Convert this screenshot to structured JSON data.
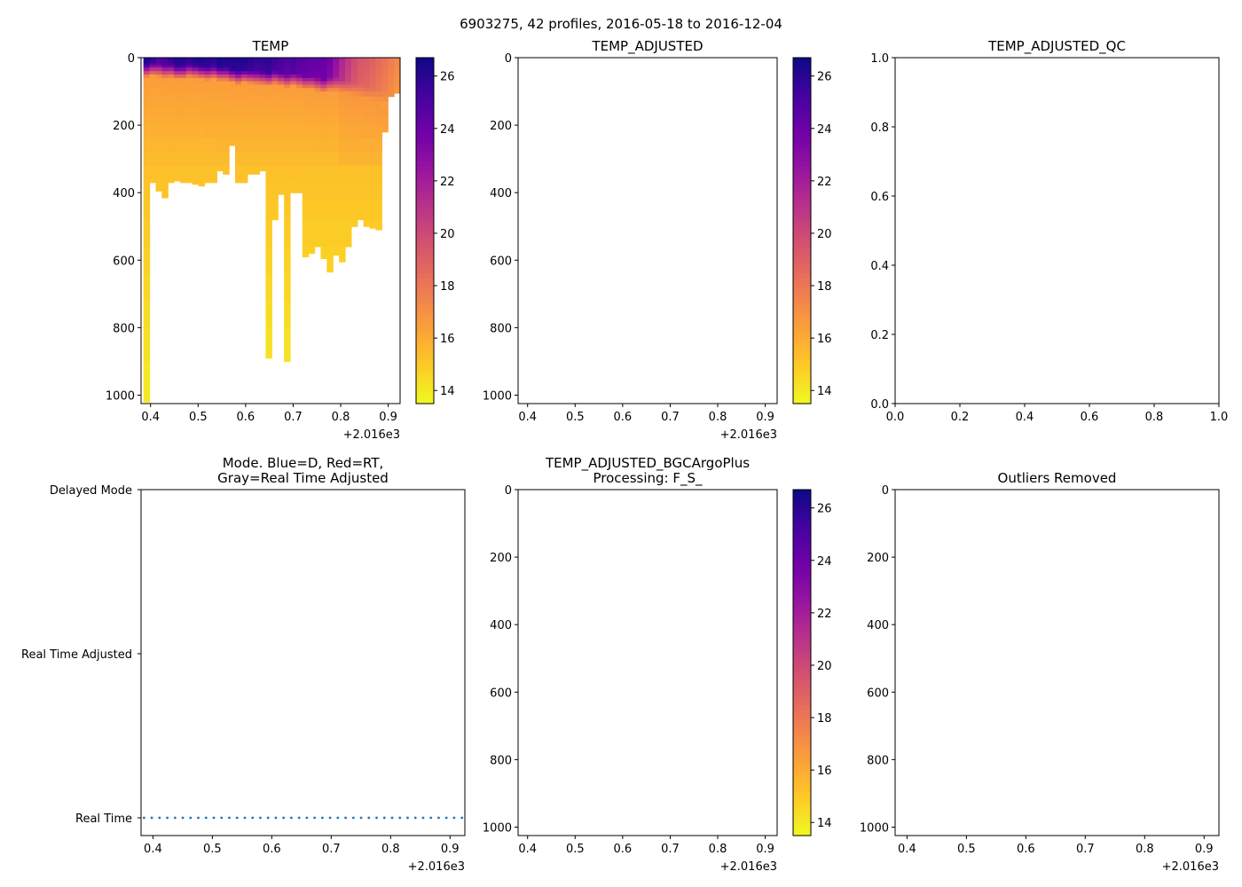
{
  "figure_title": "6903275, 42 profiles, 2016-05-18 to 2016-12-04",
  "colors": {
    "plasma": [
      "#0d0887",
      "#46039f",
      "#7201a8",
      "#9c179e",
      "#bd3786",
      "#d8576b",
      "#ed7953",
      "#fb9f3a",
      "#fdca26",
      "#f0f921"
    ],
    "mode_dots": "#1f77b4"
  },
  "chart_data": [
    {
      "id": "temp",
      "type": "heatmap",
      "title": "TEMP",
      "xlim": [
        0.38,
        0.925
      ],
      "xticks": [
        "0.4",
        "0.5",
        "0.6",
        "0.7",
        "0.8",
        "0.9"
      ],
      "x_offset_label": "+2.016e3",
      "ylim": [
        1025,
        0
      ],
      "yticks": [
        "0",
        "200",
        "400",
        "600",
        "800",
        "1000"
      ],
      "colorbar": {
        "range": [
          13.5,
          26.7
        ],
        "ticks": [
          "14",
          "16",
          "18",
          "20",
          "22",
          "24",
          "26"
        ]
      },
      "profile_depths": [
        1020,
        370,
        395,
        415,
        370,
        365,
        370,
        370,
        375,
        380,
        370,
        370,
        335,
        345,
        260,
        370,
        370,
        345,
        345,
        335,
        890,
        480,
        405,
        900,
        400,
        400,
        590,
        580,
        560,
        595,
        635,
        585,
        605,
        560,
        500,
        480,
        500,
        505,
        510,
        220,
        115,
        105
      ],
      "surface_temps": [
        26.5,
        26,
        25,
        25.3,
        25.8,
        26.3,
        26.2,
        26,
        26.3,
        26.4,
        26.2,
        26.1,
        26.5,
        26.3,
        26.4,
        26.3,
        26.4,
        26.1,
        25.8,
        25.9,
        26,
        25.6,
        25.3,
        24.9,
        25.2,
        24.8,
        24.6,
        24.4,
        24.3,
        24.3,
        23.8,
        22.8,
        21.7,
        20.8,
        20,
        19.5,
        19.3,
        19,
        18.6,
        18.2,
        17.8,
        17.4
      ],
      "mixed_layer_depths": [
        20,
        15,
        18,
        22,
        20,
        25,
        25,
        20,
        22,
        25,
        28,
        25,
        30,
        30,
        35,
        40,
        35,
        38,
        40,
        42,
        45,
        40,
        45,
        50,
        45,
        50,
        55,
        55,
        60,
        65,
        60,
        60,
        65,
        70,
        75,
        80,
        85,
        90,
        95,
        100,
        105,
        105
      ]
    },
    {
      "id": "temp_adjusted",
      "type": "heatmap",
      "title": "TEMP_ADJUSTED",
      "xlim": [
        0.38,
        0.925
      ],
      "xticks": [
        "0.4",
        "0.5",
        "0.6",
        "0.7",
        "0.8",
        "0.9"
      ],
      "x_offset_label": "+2.016e3",
      "ylim": [
        1025,
        0
      ],
      "yticks": [
        "0",
        "200",
        "400",
        "600",
        "800",
        "1000"
      ],
      "colorbar": {
        "range": [
          13.5,
          26.7
        ],
        "ticks": [
          "14",
          "16",
          "18",
          "20",
          "22",
          "24",
          "26"
        ]
      },
      "values": []
    },
    {
      "id": "temp_adjusted_qc",
      "type": "scatter",
      "title": "TEMP_ADJUSTED_QC",
      "xlim": [
        0,
        1
      ],
      "ylim": [
        0,
        1
      ],
      "xticks": [
        "0.0",
        "0.2",
        "0.4",
        "0.6",
        "0.8",
        "1.0"
      ],
      "yticks": [
        "0.0",
        "0.2",
        "0.4",
        "0.6",
        "0.8",
        "1.0"
      ],
      "values": []
    },
    {
      "id": "mode",
      "type": "scatter",
      "title_lines": [
        "Mode. Blue=D, Red=RT,",
        "Gray=Real Time Adjusted"
      ],
      "xlim": [
        0.38,
        0.925
      ],
      "xticks": [
        "0.4",
        "0.5",
        "0.6",
        "0.7",
        "0.8",
        "0.9"
      ],
      "x_offset_label": "+2.016e3",
      "ycategories": [
        "Delayed Mode",
        "Real Time Adjusted",
        "Real Time"
      ],
      "points": {
        "x_start": 0.385,
        "x_end": 0.92,
        "count": 42,
        "category": "Real Time"
      }
    },
    {
      "id": "bgcargoplus",
      "type": "heatmap",
      "title_lines": [
        "TEMP_ADJUSTED_BGCArgoPlus",
        "Processing: F_S_"
      ],
      "xlim": [
        0.38,
        0.925
      ],
      "xticks": [
        "0.4",
        "0.5",
        "0.6",
        "0.7",
        "0.8",
        "0.9"
      ],
      "x_offset_label": "+2.016e3",
      "ylim": [
        1025,
        0
      ],
      "yticks": [
        "0",
        "200",
        "400",
        "600",
        "800",
        "1000"
      ],
      "colorbar": {
        "range": [
          13.5,
          26.7
        ],
        "ticks": [
          "14",
          "16",
          "18",
          "20",
          "22",
          "24",
          "26"
        ]
      },
      "values": []
    },
    {
      "id": "outliers",
      "type": "heatmap",
      "title": "Outliers Removed",
      "xlim": [
        0.38,
        0.925
      ],
      "xticks": [
        "0.4",
        "0.5",
        "0.6",
        "0.7",
        "0.8",
        "0.9"
      ],
      "x_offset_label": "+2.016e3",
      "ylim": [
        1025,
        0
      ],
      "yticks": [
        "0",
        "200",
        "400",
        "600",
        "800",
        "1000"
      ],
      "values": []
    }
  ]
}
